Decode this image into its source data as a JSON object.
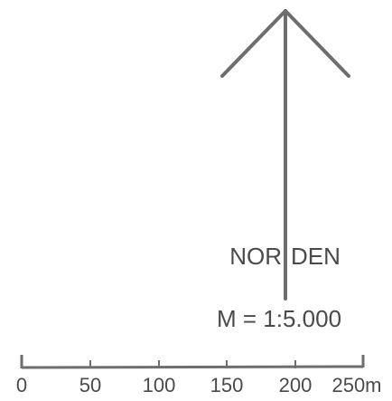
{
  "north_arrow": {
    "label_left": "NOR",
    "label_right": "DEN",
    "color": "#6e6e6e"
  },
  "scale": {
    "ratio_text": "M = 1:5.000",
    "ticks": [
      {
        "value": 0,
        "label": "0"
      },
      {
        "value": 50,
        "label": "50"
      },
      {
        "value": 100,
        "label": "100"
      },
      {
        "value": 150,
        "label": "150"
      },
      {
        "value": 200,
        "label": "200"
      },
      {
        "value": 250,
        "label": "250m"
      }
    ],
    "color": "#6e6e6e"
  }
}
